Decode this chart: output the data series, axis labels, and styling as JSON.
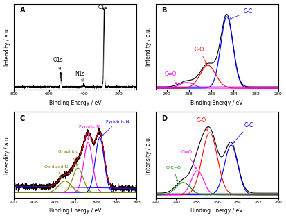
{
  "panel_A": {
    "label": "A",
    "xlabel": "Binding Energy / eV",
    "ylabel": "Intensity / a.u.",
    "xlim": [
      800,
      100
    ],
    "xticks": [
      800,
      600,
      400,
      200
    ]
  },
  "panel_B": {
    "label": "B",
    "xlabel": "Binding Energy / eV",
    "ylabel": "Intensity / a.u.",
    "xlim": [
      291,
      280
    ],
    "xticks": [
      290,
      288,
      286,
      284,
      282,
      280
    ]
  },
  "panel_C": {
    "label": "C",
    "xlabel": "Binding Energy / eV",
    "ylabel": "Intendity / a.u.",
    "xlim": [
      411,
      393
    ],
    "xticks": [
      411,
      408,
      405,
      402,
      399,
      396,
      393
    ]
  },
  "panel_D": {
    "label": "D",
    "xlabel": "Binding Energy / eV",
    "ylabel": "Intensity / a.u.",
    "xlim": [
      292,
      280
    ],
    "xticks": [
      292,
      290,
      288,
      286,
      284,
      282,
      280
    ]
  },
  "colors": {
    "blue": "#0000FF",
    "red": "#FF0000",
    "magenta": "#FF00FF",
    "green": "#008000",
    "olive": "#808000",
    "purple": "#9900CC",
    "black": "#000000"
  }
}
